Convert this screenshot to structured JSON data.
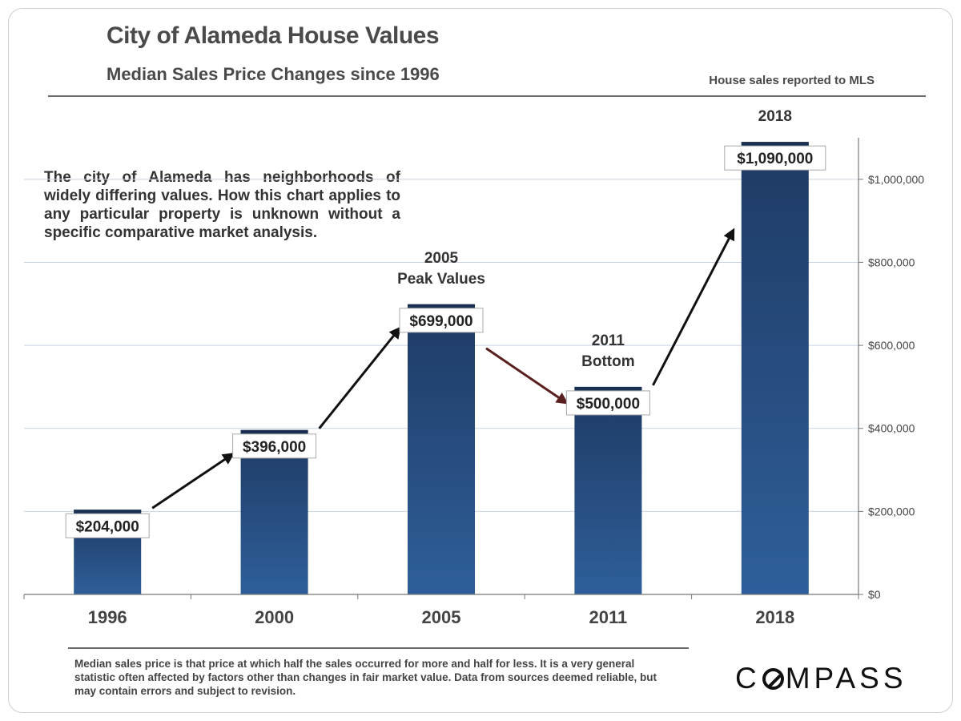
{
  "header": {
    "title": "City of Alameda House Values",
    "subtitle": "Median Sales Price Changes since 1996",
    "source_note": "House sales reported to MLS"
  },
  "note": "The city of Alameda has neighborhoods of widely differing values. How this chart applies to any particular property is unknown without a specific comparative market analysis.",
  "footnote": "Median sales price is that price at which half the sales occurred for more and half for less. It is a very general statistic often affected by factors other than changes in fair market value. Data from sources deemed reliable, but may contain errors and subject to revision.",
  "logo": {
    "text_before": "C",
    "text_after": "MPASS"
  },
  "colors": {
    "bar_top": "#1f3a63",
    "bar_bottom": "#2e5f9a",
    "bar_cap": "#1a2f52",
    "arrow": "#111111",
    "arrow_down": "#5a1f1f"
  },
  "chart_data": {
    "type": "bar",
    "categories": [
      "1996",
      "2000",
      "2005",
      "2011",
      "2018"
    ],
    "values": [
      204000,
      396000,
      699000,
      500000,
      1090000
    ],
    "value_labels": [
      "$204,000",
      "$396,000",
      "$699,000",
      "$500,000",
      "$1,090,000"
    ],
    "ylim": [
      0,
      1100000
    ],
    "yticks": [
      0,
      200000,
      400000,
      600000,
      800000,
      1000000
    ],
    "ytick_labels": [
      "$0",
      "$200,000",
      "$400,000",
      "$600,000",
      "$800,000",
      "$1,000,000"
    ],
    "y_axis_side": "right",
    "grid": true,
    "annotations": [
      {
        "category": "2005",
        "lines": [
          "2005",
          "Peak Values"
        ]
      },
      {
        "category": "2011",
        "lines": [
          "2011",
          "Bottom"
        ]
      },
      {
        "category": "2018",
        "lines": [
          "2018"
        ]
      }
    ],
    "trend_arrows": [
      {
        "from": "1996",
        "to": "2000",
        "direction": "up"
      },
      {
        "from": "2000",
        "to": "2005",
        "direction": "up"
      },
      {
        "from": "2005",
        "to": "2011",
        "direction": "down"
      },
      {
        "from": "2011",
        "to": "2018",
        "direction": "up"
      }
    ]
  }
}
